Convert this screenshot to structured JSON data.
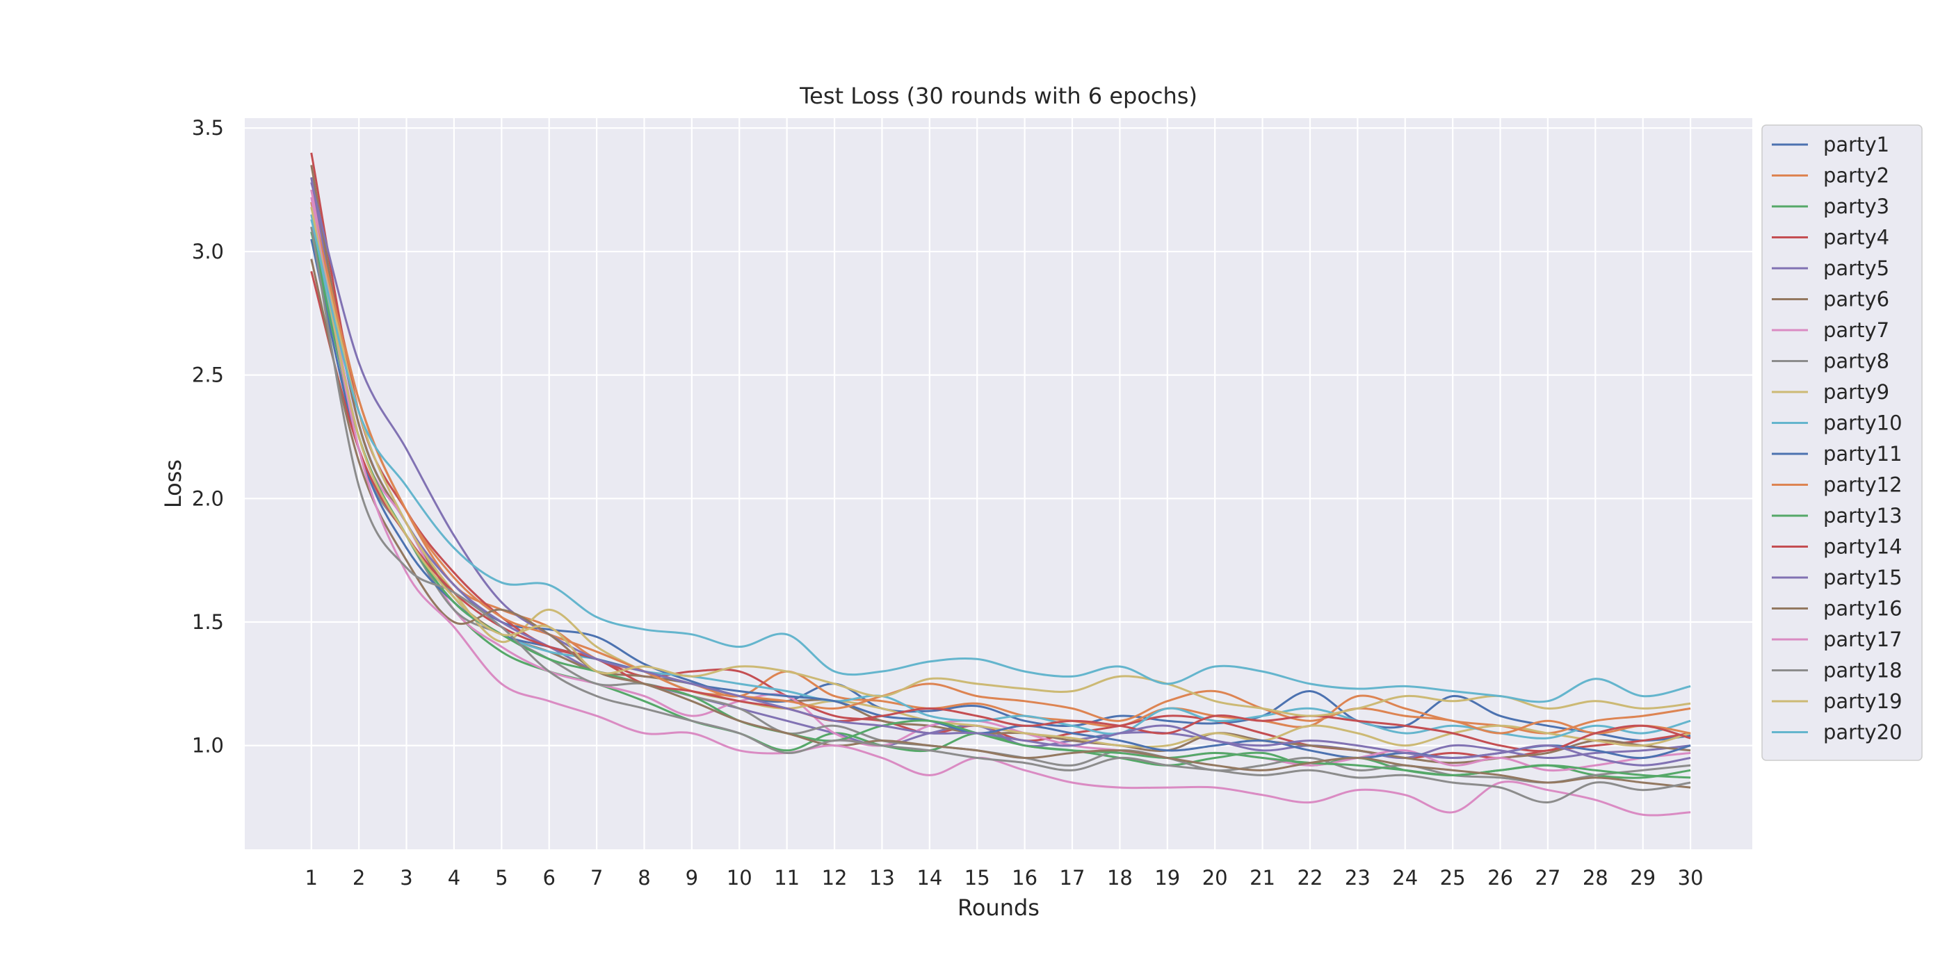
{
  "chart_data": {
    "type": "line",
    "title": "Test Loss (30 rounds with 6 epochs)",
    "xlabel": "Rounds",
    "ylabel": "Loss",
    "ylim": [
      0.58,
      3.54
    ],
    "xlim": [
      -0.4,
      31.3
    ],
    "yticks": [
      1.0,
      1.5,
      2.0,
      2.5,
      3.0,
      3.5
    ],
    "ytick_labels": [
      "1.0",
      "1.5",
      "2.0",
      "2.5",
      "3.0",
      "3.5"
    ],
    "x": [
      1,
      2,
      3,
      4,
      5,
      6,
      7,
      8,
      9,
      10,
      11,
      12,
      13,
      14,
      15,
      16,
      17,
      18,
      19,
      20,
      21,
      22,
      23,
      24,
      25,
      26,
      27,
      28,
      29,
      30
    ],
    "grid": true,
    "legend_position": "outside-right-top",
    "series": [
      {
        "name": "party1",
        "color": "#4c72b0",
        "values": [
          3.3,
          2.3,
          1.9,
          1.65,
          1.5,
          1.47,
          1.44,
          1.33,
          1.26,
          1.2,
          1.18,
          1.25,
          1.15,
          1.14,
          1.16,
          1.1,
          1.08,
          1.12,
          1.1,
          1.09,
          1.12,
          1.22,
          1.1,
          1.08,
          1.2,
          1.12,
          1.08,
          1.05,
          1.02,
          1.04
        ]
      },
      {
        "name": "party2",
        "color": "#dd8452",
        "values": [
          3.25,
          2.4,
          1.95,
          1.65,
          1.55,
          1.48,
          1.35,
          1.3,
          1.25,
          1.2,
          1.3,
          1.2,
          1.18,
          1.15,
          1.17,
          1.12,
          1.1,
          1.08,
          1.15,
          1.12,
          1.1,
          1.08,
          1.2,
          1.15,
          1.1,
          1.08,
          1.05,
          1.1,
          1.12,
          1.15
        ]
      },
      {
        "name": "party3",
        "color": "#55a868",
        "values": [
          3.1,
          2.25,
          1.85,
          1.55,
          1.38,
          1.3,
          1.25,
          1.18,
          1.1,
          1.05,
          0.98,
          1.05,
          1.0,
          0.98,
          1.05,
          1.0,
          0.98,
          0.95,
          0.92,
          0.95,
          0.97,
          0.92,
          0.95,
          0.9,
          0.88,
          0.9,
          0.92,
          0.88,
          0.87,
          0.9
        ]
      },
      {
        "name": "party4",
        "color": "#c44e52",
        "values": [
          3.4,
          2.35,
          1.95,
          1.7,
          1.52,
          1.4,
          1.35,
          1.28,
          1.3,
          1.3,
          1.2,
          1.12,
          1.1,
          1.05,
          1.08,
          1.02,
          1.05,
          1.08,
          1.12,
          1.1,
          1.05,
          1.0,
          0.98,
          0.95,
          0.97,
          0.95,
          0.98,
          1.0,
          1.02,
          1.05
        ]
      },
      {
        "name": "party5",
        "color": "#8172b3",
        "values": [
          3.3,
          2.3,
          1.9,
          1.65,
          1.5,
          1.4,
          1.3,
          1.25,
          1.2,
          1.15,
          1.1,
          1.05,
          1.0,
          1.05,
          1.08,
          1.0,
          1.02,
          1.05,
          1.05,
          1.02,
          0.98,
          1.0,
          0.98,
          0.95,
          1.0,
          0.98,
          0.95,
          0.97,
          0.98,
          1.0
        ]
      },
      {
        "name": "party6",
        "color": "#937860",
        "values": [
          3.35,
          2.3,
          1.9,
          1.6,
          1.45,
          1.38,
          1.3,
          1.28,
          1.25,
          1.2,
          1.18,
          1.18,
          1.1,
          1.08,
          1.05,
          1.05,
          1.02,
          1.0,
          0.98,
          1.05,
          1.02,
          1.0,
          0.98,
          0.95,
          0.93,
          0.95,
          0.97,
          1.02,
          1.0,
          0.98
        ]
      },
      {
        "name": "party7",
        "color": "#da8bc3",
        "values": [
          3.25,
          2.25,
          1.9,
          1.55,
          1.4,
          1.3,
          1.25,
          1.2,
          1.12,
          1.18,
          1.2,
          1.05,
          1.0,
          1.08,
          1.1,
          1.05,
          1.0,
          0.98,
          0.95,
          0.97,
          0.95,
          0.92,
          0.95,
          0.98,
          0.92,
          0.95,
          0.9,
          0.92,
          0.95,
          0.97
        ]
      },
      {
        "name": "party8",
        "color": "#8c8c8c",
        "values": [
          3.2,
          2.2,
          1.85,
          1.55,
          1.45,
          1.35,
          1.25,
          1.25,
          1.2,
          1.15,
          1.05,
          1.08,
          1.02,
          1.0,
          0.98,
          0.95,
          0.92,
          0.98,
          0.95,
          0.9,
          0.92,
          0.95,
          0.9,
          0.92,
          0.88,
          0.87,
          0.85,
          0.88,
          0.9,
          0.92
        ]
      },
      {
        "name": "party9",
        "color": "#ccb974",
        "values": [
          3.2,
          2.35,
          1.9,
          1.62,
          1.42,
          1.55,
          1.4,
          1.3,
          1.22,
          1.18,
          1.15,
          1.18,
          1.15,
          1.1,
          1.08,
          1.05,
          1.03,
          1.0,
          1.0,
          1.05,
          1.02,
          1.08,
          1.05,
          1.0,
          1.05,
          1.08,
          1.05,
          1.02,
          1.0,
          1.05
        ]
      },
      {
        "name": "party10",
        "color": "#64b5cd",
        "values": [
          3.15,
          2.25,
          1.85,
          1.58,
          1.45,
          1.38,
          1.35,
          1.3,
          1.28,
          1.25,
          1.22,
          1.18,
          1.2,
          1.12,
          1.1,
          1.12,
          1.08,
          1.05,
          1.15,
          1.1,
          1.12,
          1.15,
          1.1,
          1.05,
          1.08,
          1.05,
          1.03,
          1.08,
          1.05,
          1.1
        ]
      },
      {
        "name": "party11",
        "color": "#4c72b0",
        "values": [
          3.05,
          2.2,
          1.8,
          1.58,
          1.45,
          1.4,
          1.35,
          1.3,
          1.25,
          1.22,
          1.2,
          1.18,
          1.12,
          1.1,
          1.05,
          1.08,
          1.05,
          1.02,
          0.98,
          1.0,
          1.02,
          0.98,
          0.95,
          0.97,
          0.95,
          0.97,
          1.0,
          0.98,
          0.95,
          1.0
        ]
      },
      {
        "name": "party12",
        "color": "#dd8452",
        "values": [
          3.2,
          2.4,
          1.95,
          1.68,
          1.52,
          1.45,
          1.38,
          1.3,
          1.22,
          1.2,
          1.18,
          1.15,
          1.2,
          1.25,
          1.2,
          1.18,
          1.15,
          1.1,
          1.18,
          1.22,
          1.15,
          1.1,
          1.15,
          1.12,
          1.1,
          1.05,
          1.1,
          1.05,
          1.08,
          1.05
        ]
      },
      {
        "name": "party13",
        "color": "#55a868",
        "values": [
          3.08,
          2.25,
          1.85,
          1.58,
          1.45,
          1.35,
          1.3,
          1.25,
          1.2,
          1.1,
          1.05,
          1.02,
          1.08,
          1.1,
          1.05,
          1.0,
          0.98,
          0.97,
          0.95,
          0.97,
          0.95,
          0.93,
          0.92,
          0.9,
          0.88,
          0.9,
          0.92,
          0.9,
          0.88,
          0.87
        ]
      },
      {
        "name": "party14",
        "color": "#c44e52",
        "values": [
          2.92,
          2.2,
          1.85,
          1.62,
          1.48,
          1.4,
          1.35,
          1.25,
          1.22,
          1.18,
          1.15,
          1.1,
          1.12,
          1.15,
          1.12,
          1.08,
          1.1,
          1.08,
          1.05,
          1.12,
          1.1,
          1.12,
          1.1,
          1.08,
          1.05,
          1.0,
          0.98,
          1.05,
          1.08,
          1.03
        ]
      },
      {
        "name": "party15",
        "color": "#8172b3",
        "values": [
          3.28,
          2.55,
          2.2,
          1.85,
          1.58,
          1.45,
          1.35,
          1.3,
          1.25,
          1.2,
          1.15,
          1.1,
          1.08,
          1.05,
          1.05,
          1.02,
          1.0,
          1.05,
          1.08,
          1.02,
          1.0,
          1.02,
          1.0,
          0.97,
          0.95,
          0.97,
          1.0,
          0.95,
          0.92,
          0.95
        ]
      },
      {
        "name": "party16",
        "color": "#937860",
        "values": [
          2.97,
          2.15,
          1.75,
          1.5,
          1.55,
          1.45,
          1.3,
          1.25,
          1.18,
          1.1,
          1.05,
          1.0,
          1.02,
          1.0,
          0.98,
          0.95,
          0.97,
          0.98,
          0.95,
          0.92,
          0.9,
          0.93,
          0.95,
          0.92,
          0.9,
          0.88,
          0.85,
          0.87,
          0.85,
          0.83
        ]
      },
      {
        "name": "party17",
        "color": "#da8bc3",
        "values": [
          3.22,
          2.2,
          1.7,
          1.48,
          1.25,
          1.18,
          1.12,
          1.05,
          1.05,
          0.98,
          0.97,
          1.0,
          0.95,
          0.88,
          0.95,
          0.9,
          0.85,
          0.83,
          0.83,
          0.83,
          0.8,
          0.77,
          0.82,
          0.8,
          0.73,
          0.85,
          0.82,
          0.78,
          0.72,
          0.73
        ]
      },
      {
        "name": "party18",
        "color": "#8c8c8c",
        "values": [
          3.1,
          2.05,
          1.72,
          1.62,
          1.48,
          1.3,
          1.2,
          1.15,
          1.1,
          1.05,
          0.97,
          1.02,
          1.0,
          0.98,
          0.95,
          0.93,
          0.9,
          0.95,
          0.92,
          0.9,
          0.88,
          0.9,
          0.87,
          0.88,
          0.85,
          0.83,
          0.77,
          0.85,
          0.82,
          0.85
        ]
      },
      {
        "name": "party19",
        "color": "#ccb974",
        "values": [
          3.18,
          2.25,
          1.85,
          1.6,
          1.45,
          1.48,
          1.3,
          1.32,
          1.28,
          1.32,
          1.3,
          1.25,
          1.2,
          1.27,
          1.25,
          1.23,
          1.22,
          1.28,
          1.25,
          1.18,
          1.15,
          1.12,
          1.15,
          1.2,
          1.18,
          1.2,
          1.15,
          1.18,
          1.15,
          1.17
        ]
      },
      {
        "name": "party20",
        "color": "#64b5cd",
        "values": [
          3.13,
          2.35,
          2.05,
          1.8,
          1.66,
          1.65,
          1.52,
          1.47,
          1.45,
          1.4,
          1.45,
          1.3,
          1.3,
          1.34,
          1.35,
          1.3,
          1.28,
          1.32,
          1.25,
          1.32,
          1.3,
          1.25,
          1.23,
          1.24,
          1.22,
          1.2,
          1.18,
          1.27,
          1.2,
          1.24
        ]
      }
    ]
  }
}
